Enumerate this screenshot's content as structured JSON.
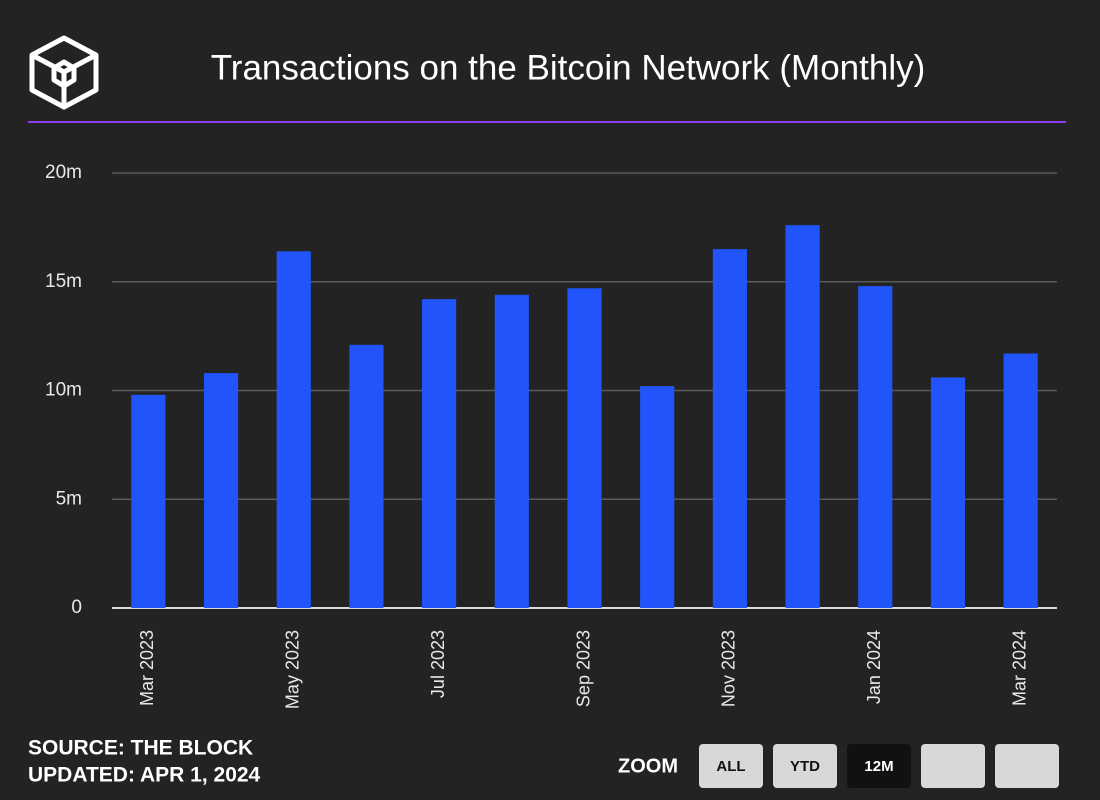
{
  "chart_data": {
    "type": "bar",
    "title": "Transactions on the Bitcoin Network (Monthly)",
    "categories": [
      "Mar 2023",
      null,
      "May 2023",
      null,
      "Jul 2023",
      null,
      "Sep 2023",
      null,
      "Nov 2023",
      null,
      "Jan 2024",
      null,
      "Mar 2024"
    ],
    "values": [
      9.8,
      10.8,
      16.4,
      12.1,
      14.2,
      14.4,
      14.7,
      10.2,
      16.5,
      17.6,
      14.8,
      10.6,
      11.7
    ],
    "color": "#2155fb",
    "ylim": [
      0,
      20
    ],
    "yticks": [
      0,
      {
        "value": 5,
        "label": "5m"
      },
      {
        "value": 10,
        "label": "10m"
      },
      {
        "value": 15,
        "label": "15m"
      },
      {
        "value": 20,
        "label": "20m"
      }
    ],
    "grid": true
  },
  "footer": {
    "source": "SOURCE: THE BLOCK",
    "updated": "UPDATED: APR 1, 2024"
  },
  "zoom": {
    "label": "ZOOM",
    "buttons": [
      "ALL",
      "YTD",
      "12M"
    ]
  }
}
